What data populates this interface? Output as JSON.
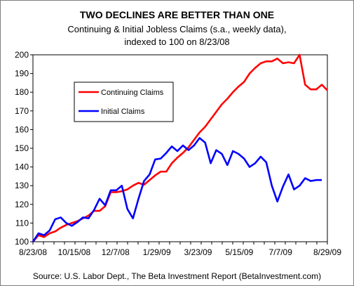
{
  "chart_data": {
    "type": "line",
    "title": "TWO DECLINES ARE BETTER THAN ONE",
    "subtitle_lines": [
      "Continuing & Initial Jobless Claims (s.a., weekly data),",
      "indexed to 100 on 8/23/08"
    ],
    "source": "Source: U.S. Labor Dept., The Beta Investment Report (BetaInvestment.com)",
    "xlabel": "",
    "ylabel": "",
    "ylim": [
      100,
      200
    ],
    "y_ticks": [
      "100",
      "110",
      "120",
      "130",
      "140",
      "150",
      "160",
      "170",
      "180",
      "190",
      "200"
    ],
    "x_tick_labels": [
      "8/23/08",
      "10/15/08",
      "12/7/08",
      "1/29/09",
      "3/23/09",
      "5/15/09",
      "7/7/09",
      "8/29/09"
    ],
    "x_tick_positions": [
      0,
      7.4286,
      14.8571,
      22.2857,
      29.7143,
      37.1429,
      44.5714,
      53
    ],
    "grid": false,
    "legend_placement": "upper-left inside plot",
    "series": [
      {
        "name": "Continuing Claims",
        "color": "#ff0000",
        "values": [
          100,
          103.5,
          102.5,
          104.5,
          105.5,
          107.5,
          109,
          110,
          111,
          112.5,
          114,
          116.5,
          116.5,
          119,
          126.5,
          126.5,
          127,
          128,
          130,
          131.5,
          130.5,
          133,
          135.5,
          137.5,
          137.5,
          142,
          145,
          147.5,
          150.5,
          154.5,
          158.5,
          161.5,
          165.5,
          169.5,
          173.5,
          176.5,
          180,
          183,
          185.5,
          190,
          193,
          195.5,
          196.5,
          196.5,
          198,
          195.5,
          196,
          195.5,
          200,
          184,
          181.5,
          181.5,
          184,
          181
        ]
      },
      {
        "name": "Initial Claims",
        "color": "#0000ff",
        "values": [
          100,
          104.5,
          103.5,
          106,
          112,
          113,
          110,
          108.5,
          110.5,
          113,
          112.5,
          117,
          123,
          119.5,
          127.5,
          127.5,
          130,
          117.5,
          112.5,
          123,
          132.5,
          136,
          144,
          144.5,
          147.5,
          151,
          148.5,
          151.5,
          149,
          151.5,
          155.5,
          153,
          142,
          149,
          147,
          141,
          148.5,
          147,
          144.5,
          140,
          142,
          145.5,
          142.5,
          130,
          121.5,
          129.5,
          136,
          128,
          130,
          134,
          132.5,
          133,
          133
        ]
      }
    ]
  }
}
